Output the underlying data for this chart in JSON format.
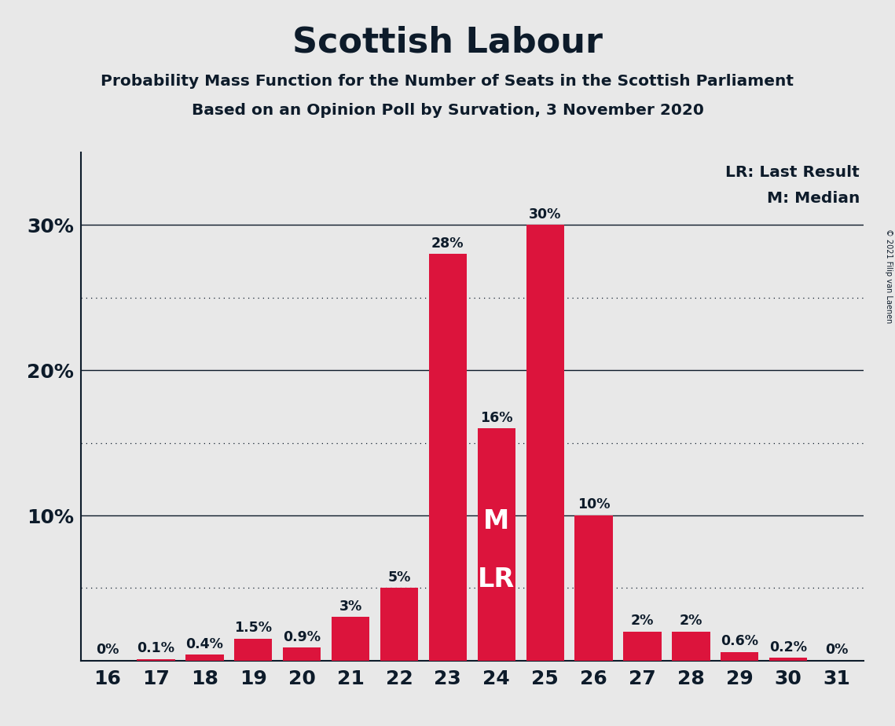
{
  "title": "Scottish Labour",
  "subtitle1": "Probability Mass Function for the Number of Seats in the Scottish Parliament",
  "subtitle2": "Based on an Opinion Poll by Survation, 3 November 2020",
  "copyright": "© 2021 Filip van Laenen",
  "seats": [
    16,
    17,
    18,
    19,
    20,
    21,
    22,
    23,
    24,
    25,
    26,
    27,
    28,
    29,
    30,
    31
  ],
  "probabilities": [
    0.0,
    0.1,
    0.4,
    1.5,
    0.9,
    3.0,
    5.0,
    28.0,
    16.0,
    30.0,
    10.0,
    2.0,
    2.0,
    0.6,
    0.2,
    0.0
  ],
  "labels": [
    "0%",
    "0.1%",
    "0.4%",
    "1.5%",
    "0.9%",
    "3%",
    "5%",
    "28%",
    "16%",
    "30%",
    "10%",
    "2%",
    "2%",
    "0.6%",
    "0.2%",
    "0%"
  ],
  "bar_color": "#DC143C",
  "background_color": "#E8E8E8",
  "text_color": "#0d1b2a",
  "median_seat": 24,
  "last_result_seat": 24,
  "ylim": [
    0,
    35
  ],
  "legend_lr": "LR: Last Result",
  "legend_m": "M: Median",
  "solid_gridlines": [
    10,
    20,
    30
  ],
  "dotted_gridlines": [
    5,
    15,
    25
  ],
  "ytick_labels": [
    "",
    "10%",
    "20%",
    "30%"
  ]
}
